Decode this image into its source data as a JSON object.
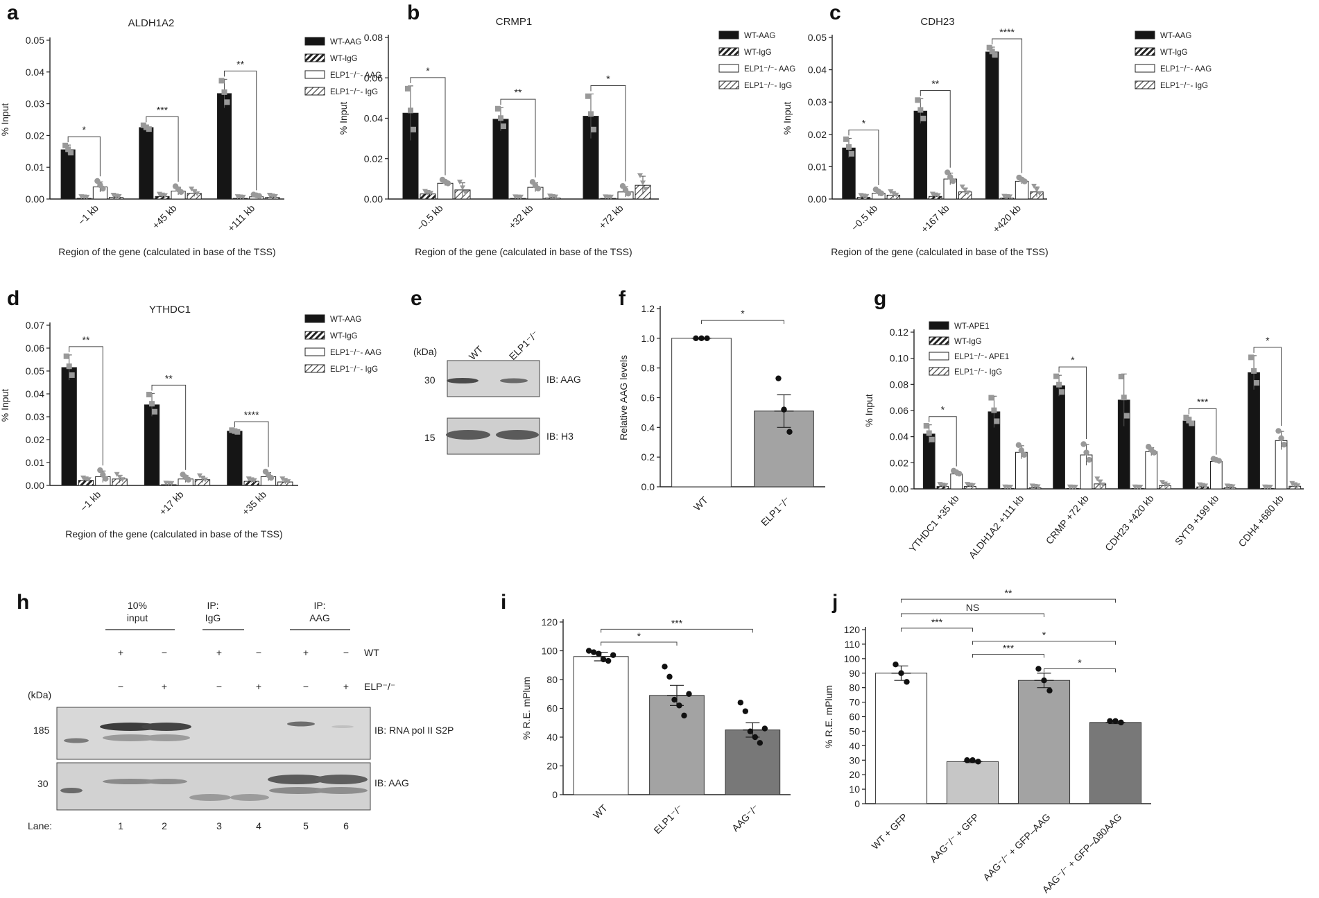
{
  "figure_title": "Multi-panel figure: AAG / APE1 ChIP-qPCR, immunoblots and reporter assays",
  "colors": {
    "wt": "#151515",
    "gray_light": "#c6c6c6",
    "gray_mid": "#a3a3a3",
    "gray_dark": "#787878",
    "marker": "#999999",
    "axis": "#222222"
  },
  "chart_data": [
    {
      "id": "a",
      "type": "bar",
      "letter": "a",
      "title": "ALDH1A2",
      "ylabel": "% Input",
      "xlabel": "Region of the gene (calculated in base of the TSS)",
      "ylim": [
        0,
        0.05
      ],
      "yticks": [
        "0.00",
        "0.01",
        "0.02",
        "0.03",
        "0.04",
        "0.05"
      ],
      "categories": [
        "−1 kb",
        "+45 kb",
        "+111 kb"
      ],
      "legend": [
        "WT-AAG",
        "WT-IgG",
        "ELP1⁻/⁻- AAG",
        "ELP1⁻/⁻- IgG"
      ],
      "series": [
        {
          "name": "WT-AAG",
          "values": [
            0.0155,
            0.0225,
            0.0332
          ],
          "err": [
            0.0015,
            0.0008,
            0.0045
          ]
        },
        {
          "name": "WT-IgG",
          "values": [
            0.0002,
            0.0008,
            0.0002
          ],
          "err": [
            0.0001,
            0.0003,
            0.0001
          ]
        },
        {
          "name": "ELP1-AAG",
          "values": [
            0.0038,
            0.0025,
            0.0007
          ],
          "err": [
            0.0016,
            0.0012,
            0.0003
          ]
        },
        {
          "name": "ELP1-IgG",
          "values": [
            0.0005,
            0.0018,
            0.0005
          ],
          "err": [
            0.0003,
            0.001,
            0.0003
          ]
        }
      ],
      "significance": [
        "*",
        "***",
        "**"
      ]
    },
    {
      "id": "b",
      "type": "bar",
      "letter": "b",
      "title": "CRMP1",
      "ylabel": "% Input",
      "xlabel": "Region of the gene (calculated in base of the TSS)",
      "ylim": [
        0,
        0.08
      ],
      "yticks": [
        "0.00",
        "0.02",
        "0.04",
        "0.06",
        "0.08"
      ],
      "categories": [
        "−0.5 kb",
        "+32 kb",
        "+72 kb"
      ],
      "legend": [
        "WT-AAG",
        "WT-IgG",
        "ELP1⁻/⁻- AAG",
        "ELP1⁻/⁻- IgG"
      ],
      "series": [
        {
          "name": "WT-AAG",
          "values": [
            0.0425,
            0.0395,
            0.041
          ],
          "err": [
            0.0135,
            0.0058,
            0.011
          ]
        },
        {
          "name": "WT-IgG",
          "values": [
            0.0025,
            0.0003,
            0.0003
          ],
          "err": [
            0.0006,
            0.0001,
            0.0001
          ]
        },
        {
          "name": "ELP1-AAG",
          "values": [
            0.0078,
            0.0058,
            0.0035
          ],
          "err": [
            0.0012,
            0.0022,
            0.0025
          ]
        },
        {
          "name": "ELP1-IgG",
          "values": [
            0.0045,
            0.0005,
            0.0068
          ],
          "err": [
            0.0035,
            0.0003,
            0.0045
          ]
        }
      ],
      "significance": [
        "*",
        "**",
        "*"
      ]
    },
    {
      "id": "c",
      "type": "bar",
      "letter": "c",
      "title": "CDH23",
      "ylabel": "% Input",
      "xlabel": "Region of the gene (calculated in base of the TSS)",
      "ylim": [
        0,
        0.05
      ],
      "yticks": [
        "0.00",
        "0.01",
        "0.02",
        "0.03",
        "0.04",
        "0.05"
      ],
      "categories": [
        "−0.5 kb",
        "+167 kb",
        "+420 kb"
      ],
      "legend": [
        "WT-AAG",
        "WT-IgG",
        "ELP1⁻/⁻- AAG",
        "ELP1⁻/⁻- IgG"
      ],
      "series": [
        {
          "name": "WT-AAG",
          "values": [
            0.0158,
            0.0272,
            0.0455
          ],
          "err": [
            0.003,
            0.0038,
            0.0015
          ]
        },
        {
          "name": "WT-IgG",
          "values": [
            0.0005,
            0.0008,
            0.0003
          ],
          "err": [
            0.0002,
            0.0003,
            0.0001
          ]
        },
        {
          "name": "ELP1-AAG",
          "values": [
            0.0018,
            0.0062,
            0.0055
          ],
          "err": [
            0.0008,
            0.0018,
            0.0008
          ]
        },
        {
          "name": "ELP1-IgG",
          "values": [
            0.0012,
            0.0022,
            0.0022
          ],
          "err": [
            0.0007,
            0.0012,
            0.0015
          ]
        }
      ],
      "significance": [
        "*",
        "**",
        "****"
      ]
    },
    {
      "id": "d",
      "type": "bar",
      "letter": "d",
      "title": "YTHDC1",
      "ylabel": "% Input",
      "xlabel": "Region of the gene (calculated in base of the TSS)",
      "ylim": [
        0,
        0.07
      ],
      "yticks": [
        "0.00",
        "0.01",
        "0.02",
        "0.03",
        "0.04",
        "0.05",
        "0.06",
        "0.07"
      ],
      "categories": [
        "−1 kb",
        "+17 kb",
        "+35 kb"
      ],
      "legend": [
        "WT-AAG",
        "WT-IgG",
        "ELP1⁻/⁻- AAG",
        "ELP1⁻/⁻- IgG"
      ],
      "series": [
        {
          "name": "WT-AAG",
          "values": [
            0.0515,
            0.0352,
            0.0237
          ],
          "err": [
            0.0055,
            0.005,
            0.0005
          ]
        },
        {
          "name": "WT-IgG",
          "values": [
            0.0022,
            0.0003,
            0.0018
          ],
          "err": [
            0.0005,
            0.0001,
            0.0005
          ]
        },
        {
          "name": "ELP1-AAG",
          "values": [
            0.0038,
            0.0028,
            0.0038
          ],
          "err": [
            0.0025,
            0.0015,
            0.0018
          ]
        },
        {
          "name": "ELP1-IgG",
          "values": [
            0.0028,
            0.0025,
            0.0015
          ],
          "err": [
            0.0015,
            0.0012,
            0.0008
          ]
        }
      ],
      "significance": [
        "**",
        "**",
        "****"
      ]
    },
    {
      "id": "f",
      "type": "bar",
      "letter": "f",
      "title": "",
      "ylabel": "Relative AAG levels",
      "xlabel": "",
      "ylim": [
        0,
        1.2
      ],
      "yticks": [
        "0.0",
        "0.2",
        "0.4",
        "0.6",
        "0.8",
        "1.0",
        "1.2"
      ],
      "categories": [
        "WT",
        "ELP1⁻/⁻"
      ],
      "values": [
        1.0,
        0.51
      ],
      "err": [
        0.0,
        0.11
      ],
      "points": [
        [
          1.0,
          1.0,
          1.0
        ],
        [
          0.73,
          0.52,
          0.37
        ]
      ],
      "significance": [
        "*"
      ]
    },
    {
      "id": "g",
      "type": "bar",
      "letter": "g",
      "title": "",
      "ylabel": "% Input",
      "xlabel": "",
      "ylim": [
        0,
        0.12
      ],
      "yticks": [
        "0.00",
        "0.02",
        "0.04",
        "0.06",
        "0.08",
        "0.10",
        "0.12"
      ],
      "categories": [
        "YTHDC1 +35 kb",
        "ALDH1A2 +111 kb",
        "CRMP +72 kb",
        "CDH23 +420 kb",
        "SYT9 +199 kb",
        "CDH4 +680 kb"
      ],
      "legend": [
        "WT-APE1",
        "WT-IgG",
        "ELP1⁻/⁻- APE1",
        "ELP1⁻/⁻- IgG"
      ],
      "series": [
        {
          "name": "WT-APE1",
          "values": [
            0.042,
            0.059,
            0.079,
            0.068,
            0.052,
            0.089
          ],
          "err": [
            0.007,
            0.012,
            0.008,
            0.02,
            0.003,
            0.013
          ]
        },
        {
          "name": "WT-IgG",
          "values": [
            0.0018,
            0.0003,
            0.0003,
            0.0003,
            0.0015,
            0.0003
          ],
          "err": [
            0.0006,
            0.0001,
            0.0001,
            0.0001,
            0.0006,
            0.0001
          ]
        },
        {
          "name": "ELP1-APE1",
          "values": [
            0.0115,
            0.028,
            0.026,
            0.0285,
            0.021,
            0.037
          ],
          "err": [
            0.0015,
            0.005,
            0.008,
            0.003,
            0.001,
            0.007
          ]
        },
        {
          "name": "ELP1-IgG",
          "values": [
            0.0018,
            0.0008,
            0.0038,
            0.0025,
            0.0008,
            0.002
          ],
          "err": [
            0.0006,
            0.0004,
            0.003,
            0.0015,
            0.0004,
            0.0012
          ]
        }
      ],
      "significance_pairs": [
        {
          "cat": 0,
          "label": "*"
        },
        {
          "cat": 2,
          "label": "*"
        },
        {
          "cat": 4,
          "label": "***"
        },
        {
          "cat": 5,
          "label": "*"
        }
      ]
    },
    {
      "id": "i",
      "type": "bar",
      "letter": "i",
      "title": "",
      "ylabel": "% R.E. mPlum",
      "xlabel": "",
      "ylim": [
        0,
        120
      ],
      "yticks": [
        "0",
        "20",
        "40",
        "60",
        "80",
        "100",
        "120"
      ],
      "categories": [
        "WT",
        "ELP1⁻/⁻",
        "AAG⁻/⁻"
      ],
      "values": [
        96,
        69,
        45
      ],
      "err": [
        3,
        7,
        5
      ],
      "points": [
        [
          100,
          99,
          98,
          94,
          93,
          97
        ],
        [
          89,
          82,
          66,
          62,
          55,
          70
        ],
        [
          64,
          58,
          44,
          40,
          36,
          46
        ]
      ],
      "significance_pairs": [
        {
          "from": 0,
          "to": 1,
          "label": "*"
        },
        {
          "from": 0,
          "to": 2,
          "label": "***"
        }
      ]
    },
    {
      "id": "j",
      "type": "bar",
      "letter": "j",
      "title": "",
      "ylabel": "% R.E. mPlum",
      "xlabel": "",
      "ylim": [
        0,
        120
      ],
      "yticks": [
        "0",
        "10",
        "20",
        "30",
        "40",
        "50",
        "60",
        "70",
        "80",
        "90",
        "100",
        "110",
        "120"
      ],
      "categories": [
        "WT  + GFP",
        "AAG⁻/⁻ + GFP",
        "AAG⁻/⁻ + GFP–AAG",
        "AAG⁻/⁻ + GFP–Δ80AAG"
      ],
      "values": [
        90,
        29,
        85,
        56
      ],
      "err": [
        5,
        0.7,
        5,
        0.8
      ],
      "points": [
        [
          96,
          90,
          84
        ],
        [
          30,
          30,
          29
        ],
        [
          93,
          85,
          78
        ],
        [
          57,
          57,
          56
        ]
      ],
      "significance_pairs": [
        {
          "from": 0,
          "to": 3,
          "label": "**"
        },
        {
          "from": 0,
          "to": 2,
          "label": "NS"
        },
        {
          "from": 0,
          "to": 1,
          "label": "***"
        },
        {
          "from": 1,
          "to": 3,
          "label": "*"
        },
        {
          "from": 1,
          "to": 2,
          "label": "***"
        },
        {
          "from": 2,
          "to": 3,
          "label": "*"
        }
      ]
    }
  ],
  "blot_e": {
    "letter": "e",
    "kda": "(kDa)",
    "lanes": [
      "WT",
      "ELP1⁻/⁻"
    ],
    "markers": [
      "30",
      "15"
    ],
    "bands": [
      "IB: AAG",
      "IB: H3"
    ]
  },
  "blot_h": {
    "letter": "h",
    "kda": "(kDa)",
    "groups": [
      "10%\ninput",
      "IP:\nIgG",
      "IP:\nAAG"
    ],
    "wt_row": {
      "label": "WT",
      "signs": [
        "+",
        "−",
        "+",
        "−",
        "+",
        "−"
      ]
    },
    "elp_row": {
      "label": "ELP⁻/⁻",
      "signs": [
        "−",
        "+",
        "−",
        "+",
        "−",
        "+"
      ]
    },
    "markers": [
      "185",
      "30"
    ],
    "bands": [
      "IB: RNA pol II S2P",
      "IB: AAG"
    ],
    "lane_label": "Lane:",
    "lanes": [
      "1",
      "2",
      "3",
      "4",
      "5",
      "6"
    ]
  }
}
